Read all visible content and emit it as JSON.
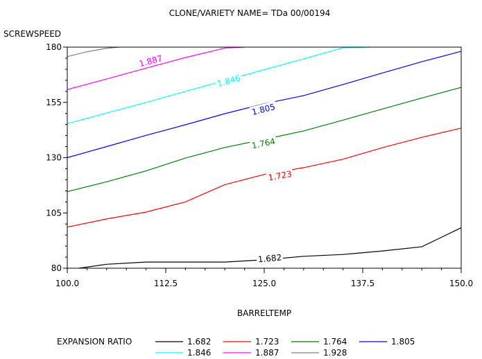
{
  "chart_data": {
    "type": "contour",
    "title": "CLONE/VARIETY NAME= TDa 00/00194",
    "xlabel": "BARRELTEMP",
    "ylabel": "SCREWSPEED",
    "xlim": [
      100.0,
      150.0
    ],
    "ylim": [
      80,
      180
    ],
    "x_ticks": [
      100.0,
      112.5,
      125.0,
      137.5,
      150.0
    ],
    "x_tick_labels": [
      "100.0",
      "112.5",
      "125.0",
      "137.5",
      "150.0"
    ],
    "y_ticks": [
      80,
      105,
      130,
      155,
      180
    ],
    "y_tick_labels": [
      "80",
      "105",
      "130",
      "155",
      "180"
    ],
    "legend": {
      "title": "EXPANSION RATIO",
      "placement": "bottom"
    },
    "series": [
      {
        "name": "1.682",
        "label": "1.682",
        "color": "#000000",
        "label_at": [
          125.7,
          84.4
        ],
        "x": [
          101.5,
          105,
          110,
          115,
          120,
          125,
          130,
          135,
          140,
          145,
          150
        ],
        "y": [
          80,
          81.8,
          82.8,
          82.8,
          82.8,
          83.8,
          85.4,
          86.2,
          87.8,
          89.7,
          98.3
        ]
      },
      {
        "name": "1.723",
        "label": "1.723",
        "color": "#ff0000",
        "label_at": [
          127.0,
          121.8
        ],
        "x": [
          100,
          105,
          110,
          115,
          120,
          125,
          130,
          135,
          140,
          145,
          150
        ],
        "y": [
          98.6,
          102.3,
          105.4,
          110.0,
          117.8,
          122.4,
          125.5,
          129.3,
          134.5,
          139.2,
          143.4
        ]
      },
      {
        "name": "1.764",
        "label": "1.764",
        "color": "#008000",
        "label_at": [
          124.9,
          136.4
        ],
        "x": [
          100,
          105,
          110,
          115,
          120,
          125,
          130,
          135,
          140,
          145,
          150
        ],
        "y": [
          114.6,
          119.1,
          124.0,
          129.8,
          134.6,
          138.3,
          142.1,
          147.0,
          152.0,
          157.0,
          161.8
        ]
      },
      {
        "name": "1.805",
        "label": "1.805",
        "color": "#0000ff",
        "label_at": [
          124.9,
          151.8
        ],
        "x": [
          100,
          105,
          110,
          115,
          120,
          125,
          130,
          135,
          140,
          145,
          150
        ],
        "y": [
          130.0,
          135.0,
          140.1,
          144.9,
          149.9,
          154.4,
          158.1,
          163.1,
          168.3,
          173.4,
          178.1
        ]
      },
      {
        "name": "1.846",
        "label": "1.846",
        "color": "#00ffff",
        "label_at": [
          120.5,
          164.7
        ],
        "x": [
          100,
          105,
          110,
          115,
          120,
          125,
          130,
          135,
          138.4
        ],
        "y": [
          145.4,
          150.2,
          155.0,
          160.0,
          164.9,
          169.8,
          174.7,
          179.7,
          180
        ]
      },
      {
        "name": "1.887",
        "label": "1.887",
        "color": "#ff00ff",
        "label_at": [
          110.6,
          173.7
        ],
        "x": [
          100,
          105,
          110,
          115,
          120,
          122.5
        ],
        "y": [
          160.8,
          165.6,
          170.5,
          175.3,
          179.6,
          180
        ]
      },
      {
        "name": "1.928",
        "label": "1.928",
        "color": "#808080",
        "label_at": null,
        "x": [
          100,
          102.5,
          105,
          106.6
        ],
        "y": [
          175.7,
          177.9,
          179.5,
          180
        ]
      }
    ]
  }
}
